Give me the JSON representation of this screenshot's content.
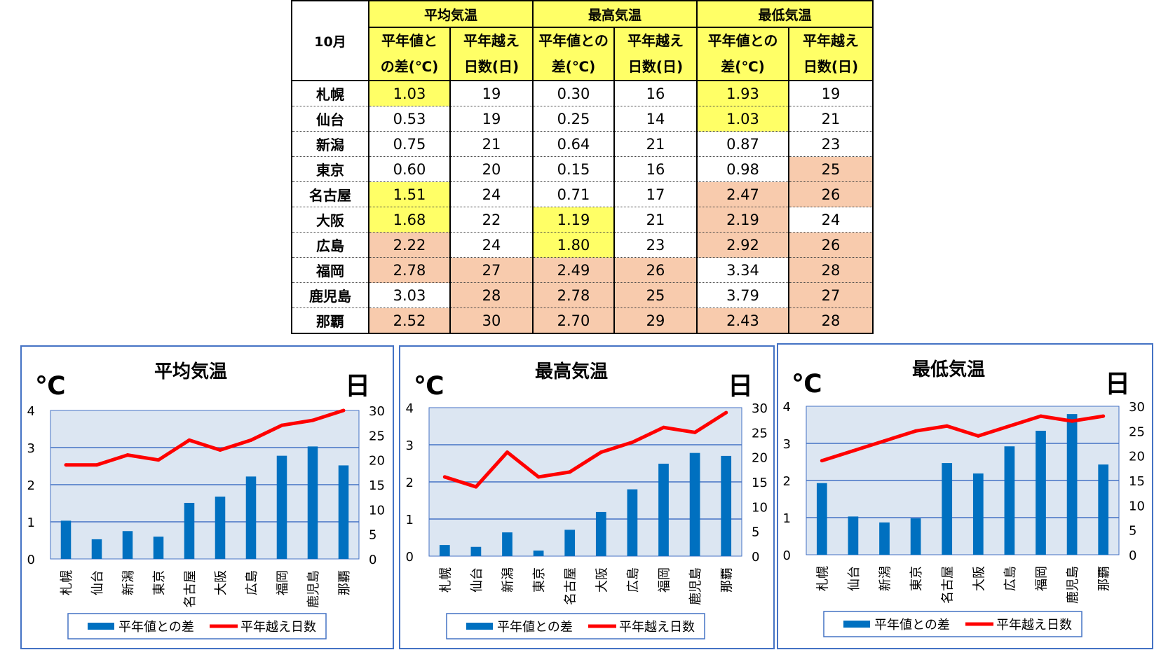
{
  "table": {
    "month": "10月",
    "groups": [
      "平均気温",
      "最高気温",
      "最低気温"
    ],
    "sub_headers": [
      [
        "平年値と",
        "の差(℃)"
      ],
      [
        "平年越え",
        "日数(日)"
      ],
      [
        "平年値との",
        "差(℃)"
      ],
      [
        "平年越え",
        "日数(日)"
      ],
      [
        "平年値との",
        "差(℃)"
      ],
      [
        "平年越え",
        "日数(日)"
      ]
    ],
    "rows": [
      {
        "city": "札幌",
        "cells": [
          "1.03",
          "19",
          "0.30",
          "16",
          "1.93",
          "19"
        ],
        "hl": [
          "y",
          "",
          "",
          "",
          "y",
          ""
        ]
      },
      {
        "city": "仙台",
        "cells": [
          "0.53",
          "19",
          "0.25",
          "14",
          "1.03",
          "21"
        ],
        "hl": [
          "",
          "",
          "",
          "",
          "y",
          ""
        ]
      },
      {
        "city": "新潟",
        "cells": [
          "0.75",
          "21",
          "0.64",
          "21",
          "0.87",
          "23"
        ],
        "hl": [
          "",
          "",
          "",
          "",
          "",
          ""
        ]
      },
      {
        "city": "東京",
        "cells": [
          "0.60",
          "20",
          "0.15",
          "16",
          "0.98",
          "25"
        ],
        "hl": [
          "",
          "",
          "",
          "",
          "",
          "o"
        ]
      },
      {
        "city": "名古屋",
        "cells": [
          "1.51",
          "24",
          "0.71",
          "17",
          "2.47",
          "26"
        ],
        "hl": [
          "y",
          "",
          "",
          "",
          "o",
          "o"
        ]
      },
      {
        "city": "大阪",
        "cells": [
          "1.68",
          "22",
          "1.19",
          "21",
          "2.19",
          "24"
        ],
        "hl": [
          "y",
          "",
          "y",
          "",
          "o",
          ""
        ]
      },
      {
        "city": "広島",
        "cells": [
          "2.22",
          "24",
          "1.80",
          "23",
          "2.92",
          "26"
        ],
        "hl": [
          "o",
          "",
          "y",
          "",
          "o",
          "o"
        ]
      },
      {
        "city": "福岡",
        "cells": [
          "2.78",
          "27",
          "2.49",
          "26",
          "3.34",
          "28"
        ],
        "hl": [
          "o",
          "o",
          "o",
          "o",
          "",
          "o"
        ]
      },
      {
        "city": "鹿児島",
        "cells": [
          "3.03",
          "28",
          "2.78",
          "25",
          "3.79",
          "27"
        ],
        "hl": [
          "",
          "o",
          "o",
          "o",
          "",
          "o"
        ]
      },
      {
        "city": "那覇",
        "cells": [
          "2.52",
          "30",
          "2.70",
          "29",
          "2.43",
          "28"
        ],
        "hl": [
          "o",
          "o",
          "o",
          "o",
          "o",
          "o"
        ]
      }
    ]
  },
  "colors": {
    "highlight_yellow": "#ffff66",
    "highlight_orange": "#f8cbad",
    "bar": "#0070c0",
    "line": "#ff0000",
    "plot_bg": "#dce6f2",
    "frame": "#4472c4"
  },
  "chart_data": [
    {
      "type": "bar",
      "title": "平均気温",
      "ylabel": "℃",
      "y2label": "日",
      "categories": [
        "札幌",
        "仙台",
        "新潟",
        "東京",
        "名古屋",
        "大阪",
        "広島",
        "福岡",
        "鹿児島",
        "那覇"
      ],
      "series": [
        {
          "name": "平年値との差",
          "type": "bar",
          "axis": "left",
          "values": [
            1.03,
            0.53,
            0.75,
            0.6,
            1.51,
            1.68,
            2.22,
            2.78,
            3.03,
            2.52
          ]
        },
        {
          "name": "平年越え日数",
          "type": "line",
          "axis": "right",
          "values": [
            19,
            19,
            21,
            20,
            24,
            22,
            24,
            27,
            28,
            30
          ]
        }
      ],
      "ylim": [
        0,
        4
      ],
      "yticks": [
        "0",
        "1",
        "2",
        "3",
        "4"
      ],
      "y2lim": [
        0,
        30
      ],
      "y2ticks": [
        "0",
        "5",
        "10",
        "15",
        "20",
        "25",
        "30"
      ],
      "grid": true,
      "legend": "bottom"
    },
    {
      "type": "bar",
      "title": "最高気温",
      "ylabel": "℃",
      "y2label": "日",
      "categories": [
        "札幌",
        "仙台",
        "新潟",
        "東京",
        "名古屋",
        "大阪",
        "広島",
        "福岡",
        "鹿児島",
        "那覇"
      ],
      "series": [
        {
          "name": "平年値との差",
          "type": "bar",
          "axis": "left",
          "values": [
            0.3,
            0.25,
            0.64,
            0.15,
            0.71,
            1.19,
            1.8,
            2.49,
            2.78,
            2.7
          ]
        },
        {
          "name": "平年越え日数",
          "type": "line",
          "axis": "right",
          "values": [
            16,
            14,
            21,
            16,
            17,
            21,
            23,
            26,
            25,
            29
          ]
        }
      ],
      "ylim": [
        0,
        4
      ],
      "yticks": [
        "0",
        "1",
        "2",
        "3",
        "4"
      ],
      "y2lim": [
        0,
        30
      ],
      "y2ticks": [
        "0",
        "5",
        "10",
        "15",
        "20",
        "25",
        "30"
      ],
      "grid": true,
      "legend": "bottom"
    },
    {
      "type": "bar",
      "title": "最低気温",
      "ylabel": "℃",
      "y2label": "日",
      "categories": [
        "札幌",
        "仙台",
        "新潟",
        "東京",
        "名古屋",
        "大阪",
        "広島",
        "福岡",
        "鹿児島",
        "那覇"
      ],
      "series": [
        {
          "name": "平年値との差",
          "type": "bar",
          "axis": "left",
          "values": [
            1.93,
            1.03,
            0.87,
            0.98,
            2.47,
            2.19,
            2.92,
            3.34,
            3.79,
            2.43
          ]
        },
        {
          "name": "平年越え日数",
          "type": "line",
          "axis": "right",
          "values": [
            19,
            21,
            23,
            25,
            26,
            24,
            26,
            28,
            27,
            28
          ]
        }
      ],
      "ylim": [
        0,
        4
      ],
      "yticks": [
        "0",
        "1",
        "2",
        "3",
        "4"
      ],
      "y2lim": [
        0,
        30
      ],
      "y2ticks": [
        "0",
        "5",
        "10",
        "15",
        "20",
        "25",
        "30"
      ],
      "grid": true,
      "legend": "bottom"
    }
  ]
}
